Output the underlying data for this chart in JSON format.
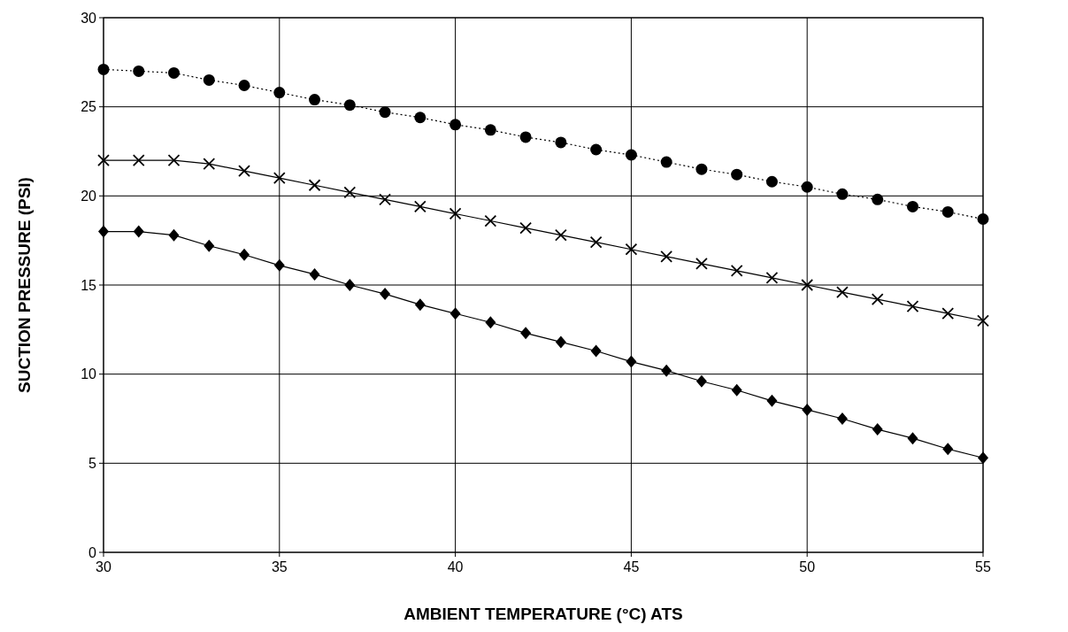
{
  "chart_data": {
    "type": "line",
    "xlabel": "AMBIENT TEMPERATURE (°C) ATS",
    "ylabel": "SUCTION PRESSURE (PSI)",
    "x": [
      30,
      31,
      32,
      33,
      34,
      35,
      36,
      37,
      38,
      39,
      40,
      41,
      42,
      43,
      44,
      45,
      46,
      47,
      48,
      49,
      50,
      51,
      52,
      53,
      54,
      55
    ],
    "series": [
      {
        "color": "#000000",
        "marker": "circle",
        "line_style": "dotted",
        "values": [
          27.1,
          27.0,
          26.9,
          26.5,
          26.2,
          25.8,
          25.4,
          25.1,
          24.7,
          24.4,
          24.0,
          23.7,
          23.3,
          23.0,
          22.6,
          22.3,
          21.9,
          21.5,
          21.2,
          20.8,
          20.5,
          20.1,
          19.8,
          19.4,
          19.1,
          18.7
        ]
      },
      {
        "color": "#000000",
        "marker": "cross",
        "line_style": "solid",
        "values": [
          22.0,
          22.0,
          22.0,
          21.8,
          21.4,
          21.0,
          20.6,
          20.2,
          19.8,
          19.4,
          19.0,
          18.6,
          18.2,
          17.8,
          17.4,
          17.0,
          16.6,
          16.2,
          15.8,
          15.4,
          15.0,
          14.6,
          14.2,
          13.8,
          13.4,
          13.0
        ]
      },
      {
        "color": "#000000",
        "marker": "diamond",
        "line_style": "solid",
        "values": [
          18.0,
          18.0,
          17.8,
          17.2,
          16.7,
          16.1,
          15.6,
          15.0,
          14.5,
          13.9,
          13.4,
          12.9,
          12.3,
          11.8,
          11.3,
          10.7,
          10.2,
          9.6,
          9.1,
          8.5,
          8.0,
          7.5,
          6.9,
          6.4,
          5.8,
          5.3
        ]
      }
    ],
    "xlim": [
      30,
      55
    ],
    "xticks": [
      30,
      35,
      40,
      45,
      50,
      55
    ],
    "ylim": [
      0,
      30
    ],
    "yticks": [
      0,
      5,
      10,
      15,
      20,
      25,
      30
    ],
    "grid": true
  }
}
